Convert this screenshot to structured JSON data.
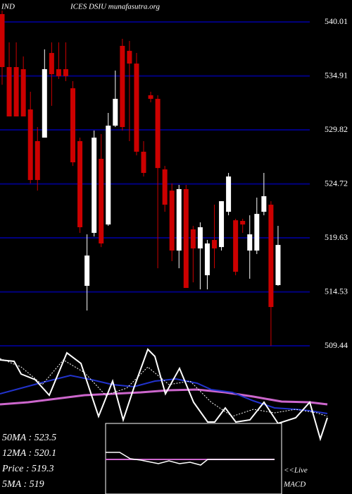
{
  "chart_data": {
    "type": "candlestick",
    "title": "IND",
    "subtitle": "ICES DSIU munafasutra.org",
    "ylim": [
      509.44,
      542.08
    ],
    "yticks": [
      540.01,
      534.91,
      529.82,
      524.72,
      519.63,
      514.53,
      509.44
    ],
    "grid": true,
    "grid_color": "#000080",
    "up_color": "#ffffff",
    "down_color": "#cc0000",
    "open": [
      540.75,
      535.75,
      535.75,
      535.55,
      531.75,
      528.76,
      529.09,
      537.08,
      535.55,
      535.55,
      533.75,
      528.76,
      515.1,
      520.1,
      527.09,
      520.89,
      530.22,
      537.75,
      537.28,
      536.08,
      527.76,
      533.09,
      532.75,
      526.09,
      524.09,
      518.43,
      524.23,
      520.43,
      518.63,
      516.1,
      519.43,
      518.76,
      522.09,
      521.29,
      521.23,
      518.43,
      518.43,
      522.09,
      522.76,
      515.17
    ],
    "high": [
      541.08,
      538.08,
      538.08,
      536.75,
      533.42,
      530.09,
      537.42,
      538.08,
      538.08,
      538.08,
      534.42,
      529.09,
      519.96,
      529.76,
      529.42,
      531.42,
      535.42,
      538.42,
      538.22,
      537.08,
      528.76,
      533.42,
      533.09,
      526.42,
      524.76,
      524.63,
      524.63,
      520.76,
      521.09,
      519.43,
      522.76,
      523.09,
      525.76,
      521.43,
      521.43,
      521.76,
      523.43,
      525.76,
      523.09,
      520.76
    ],
    "low": [
      534.09,
      531.09,
      531.09,
      531.09,
      524.76,
      524.09,
      529.09,
      532.09,
      534.62,
      534.42,
      526.42,
      520.1,
      512.77,
      519.76,
      518.76,
      520.76,
      530.09,
      529.76,
      528.76,
      527.42,
      525.42,
      532.42,
      516.76,
      522.09,
      517.43,
      516.76,
      514.9,
      515.43,
      514.77,
      514.77,
      516.76,
      518.43,
      521.76,
      516.1,
      520.1,
      515.77,
      518.1,
      521.76,
      509.44,
      515.1
    ],
    "close": [
      535.75,
      531.09,
      531.09,
      531.09,
      525.09,
      525.09,
      535.55,
      535.08,
      534.89,
      534.89,
      526.76,
      520.63,
      517.96,
      529.09,
      519.1,
      530.22,
      532.75,
      530.09,
      536.08,
      527.76,
      525.76,
      532.75,
      526.22,
      522.76,
      518.43,
      524.23,
      514.9,
      518.63,
      520.63,
      519.1,
      518.63,
      523.09,
      525.42,
      516.43,
      520.89,
      519.96,
      521.89,
      523.56,
      513.1,
      518.96
    ],
    "annotations": [
      "50MA : 523.5",
      "12MA : 520.1",
      "Price   : 519.3",
      "5MA : 519"
    ],
    "live_label": "<<Live",
    "macd_label": "MACD"
  }
}
